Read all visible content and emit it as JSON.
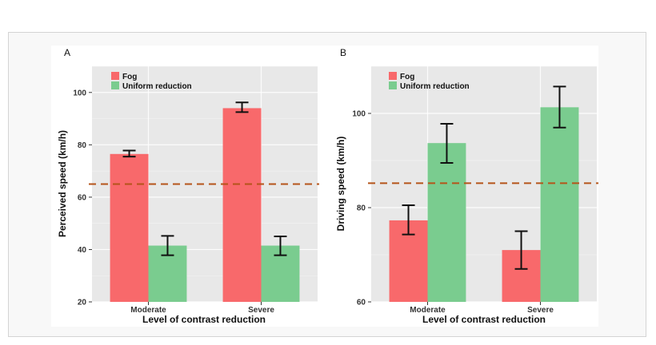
{
  "colors": {
    "fog": "#f8696b",
    "uniform": "#7acc8f",
    "reference": "#b5541a",
    "panel": "#e8e8e8",
    "grid": "#f4f4f4"
  },
  "chart_data": [
    {
      "type": "bar",
      "panel_label": "A",
      "categories": [
        "Moderate",
        "Severe"
      ],
      "series": [
        {
          "name": "Fog",
          "values": [
            76.5,
            94.0
          ],
          "error": [
            [
              75.5,
              77.8
            ],
            [
              92.5,
              96.2
            ]
          ]
        },
        {
          "name": "Uniform reduction",
          "values": [
            41.5,
            41.5
          ],
          "error": [
            [
              37.8,
              45.2
            ],
            [
              37.8,
              45.0
            ]
          ]
        }
      ],
      "reference_line": 65,
      "xlabel": "Level of contrast reduction",
      "ylabel": "Perceived speed (km/h)",
      "ylim": [
        20,
        110
      ],
      "yticks": [
        20,
        40,
        60,
        80,
        100
      ],
      "grid": true,
      "legend": "top-left"
    },
    {
      "type": "bar",
      "panel_label": "B",
      "categories": [
        "Moderate",
        "Severe"
      ],
      "series": [
        {
          "name": "Fog",
          "values": [
            77.3,
            71.0
          ],
          "error": [
            [
              74.3,
              80.5
            ],
            [
              67.0,
              75.0
            ]
          ]
        },
        {
          "name": "Uniform reduction",
          "values": [
            93.7,
            101.3
          ],
          "error": [
            [
              89.5,
              97.8
            ],
            [
              97.0,
              105.7
            ]
          ]
        }
      ],
      "reference_line": 85.2,
      "xlabel": "Level of contrast reduction",
      "ylabel": "Driving speed (km/h)",
      "ylim": [
        60,
        110
      ],
      "yticks": [
        60,
        80,
        100
      ],
      "grid": true,
      "legend": "top-left"
    }
  ]
}
